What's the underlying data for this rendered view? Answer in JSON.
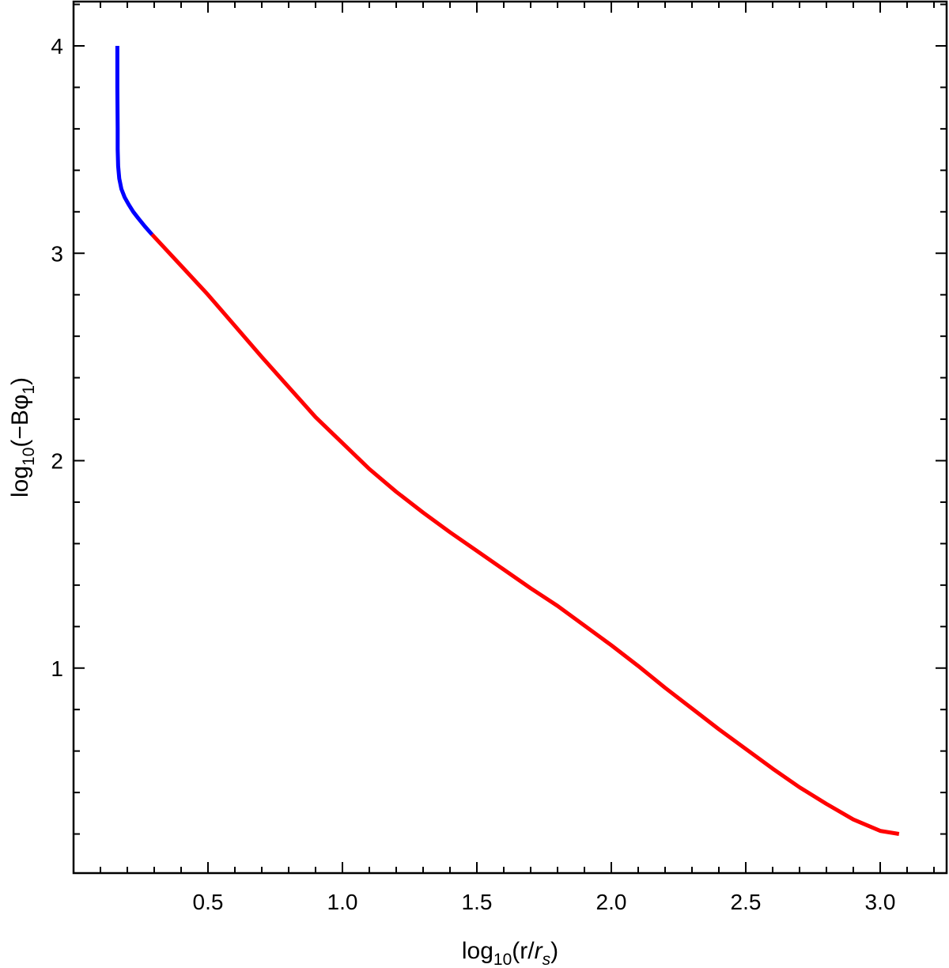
{
  "chart_data": {
    "type": "line",
    "title": "",
    "xlabel": {
      "pre": "log",
      "sub": "10",
      "post_open": "(r/",
      "italic": "r",
      "italic_sub": "s",
      "post_close": ")"
    },
    "ylabel": {
      "pre": "log",
      "sub": "10",
      "mid": "(−Bφ",
      "mid_sub": "1",
      "post": ")"
    },
    "xlim": [
      0.0,
      3.25
    ],
    "ylim": [
      0.05,
      4.2
    ],
    "xticks_major": [
      0.5,
      1.0,
      1.5,
      2.0,
      2.5,
      3.0
    ],
    "xtick_labels": [
      "0.5",
      "1.0",
      "1.5",
      "2.0",
      "2.5",
      "3.0"
    ],
    "yticks_major": [
      1,
      2,
      3,
      4
    ],
    "ytick_labels": [
      "1",
      "2",
      "3",
      "4"
    ],
    "grid": false,
    "frame_ticks": "all-sides",
    "series": [
      {
        "color": "#0000ff",
        "x": [
          0.163,
          0.163,
          0.164,
          0.164,
          0.166,
          0.17,
          0.178,
          0.19,
          0.205,
          0.222,
          0.24,
          0.265,
          0.292
        ],
        "y": [
          4.0,
          3.8,
          3.6,
          3.5,
          3.42,
          3.36,
          3.31,
          3.27,
          3.235,
          3.2,
          3.17,
          3.13,
          3.09
        ]
      },
      {
        "color": "#ff0000",
        "x": [
          0.292,
          0.4,
          0.5,
          0.6,
          0.7,
          0.8,
          0.9,
          1.0,
          1.1,
          1.2,
          1.3,
          1.4,
          1.5,
          1.6,
          1.7,
          1.8,
          1.9,
          2.0,
          2.1,
          2.2,
          2.3,
          2.4,
          2.5,
          2.6,
          2.7,
          2.8,
          2.9,
          3.0,
          3.07
        ],
        "y": [
          3.09,
          2.94,
          2.8,
          2.65,
          2.5,
          2.355,
          2.21,
          2.085,
          1.96,
          1.85,
          1.75,
          1.655,
          1.565,
          1.475,
          1.385,
          1.3,
          1.205,
          1.11,
          1.01,
          0.905,
          0.805,
          0.705,
          0.61,
          0.515,
          0.425,
          0.345,
          0.27,
          0.215,
          0.2
        ]
      }
    ]
  }
}
